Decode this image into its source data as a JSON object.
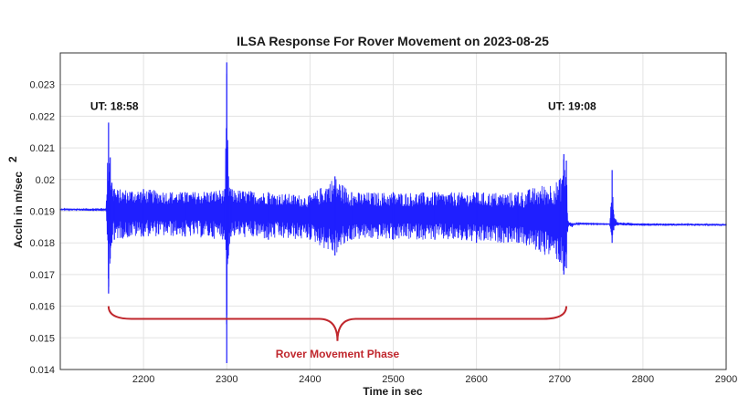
{
  "chart_data": {
    "type": "line",
    "title": "ILSA Response For Rover Movement on 2023-08-25",
    "xlabel": "Time in sec",
    "ylabel": "Accln in m/sec",
    "ylabel_sup": "2",
    "xlim": [
      2100,
      2900
    ],
    "ylim": [
      0.014,
      0.024
    ],
    "xticks": [
      "2200",
      "2300",
      "2400",
      "2500",
      "2600",
      "2700",
      "2800",
      "2900"
    ],
    "yticks": [
      "0.014",
      "0.015",
      "0.016",
      "0.017",
      "0.018",
      "0.019",
      "0.02",
      "0.021",
      "0.022",
      "0.023"
    ],
    "xtick_values": [
      2200,
      2300,
      2400,
      2500,
      2600,
      2700,
      2800,
      2900
    ],
    "ytick_values": [
      0.014,
      0.015,
      0.016,
      0.017,
      0.018,
      0.019,
      0.02,
      0.021,
      0.022,
      0.023
    ],
    "grid": true,
    "line_color": "#1f1fff",
    "series": [
      {
        "x": [
          2100,
          2155,
          2158,
          2160,
          2162,
          2165,
          2200,
          2250,
          2298,
          2300,
          2302,
          2305,
          2350,
          2400,
          2430,
          2450,
          2500,
          2550,
          2600,
          2650,
          2700,
          2705,
          2708,
          2710,
          2715,
          2720,
          2760,
          2763,
          2765,
          2770,
          2800,
          2900
        ],
        "center": [
          0.01905,
          0.01905,
          0.0191,
          0.019,
          0.01915,
          0.019,
          0.019,
          0.019,
          0.019,
          0.019,
          0.019,
          0.019,
          0.019,
          0.0189,
          0.0189,
          0.0189,
          0.0189,
          0.0189,
          0.0189,
          0.0188,
          0.0188,
          0.0188,
          0.0188,
          0.0186,
          0.01865,
          0.01862,
          0.0186,
          0.0186,
          0.01862,
          0.0186,
          0.01858,
          0.01858
        ],
        "upper": [
          0.01908,
          0.0191,
          0.0218,
          0.0207,
          0.0199,
          0.0197,
          0.0197,
          0.0196,
          0.0197,
          0.0237,
          0.0201,
          0.0197,
          0.0196,
          0.0195,
          0.0201,
          0.0196,
          0.0196,
          0.0196,
          0.0196,
          0.0196,
          0.02,
          0.0208,
          0.0206,
          0.0187,
          0.0186,
          0.01862,
          0.0186,
          0.0203,
          0.0189,
          0.01865,
          0.01862,
          0.0186
        ],
        "lower": [
          0.01903,
          0.019,
          0.0164,
          0.0175,
          0.018,
          0.0181,
          0.0182,
          0.0182,
          0.0181,
          0.0142,
          0.0176,
          0.0182,
          0.0181,
          0.0181,
          0.0176,
          0.0181,
          0.0181,
          0.0181,
          0.018,
          0.018,
          0.0174,
          0.017,
          0.0172,
          0.0185,
          0.0185,
          0.01858,
          0.01858,
          0.018,
          0.0184,
          0.01855,
          0.01854,
          0.01854
        ]
      }
    ],
    "annotations": [
      {
        "text": "UT: 18:58",
        "x": 2158,
        "y": 0.0222
      },
      {
        "text": "UT: 19:08",
        "x": 2708,
        "y": 0.0222
      }
    ],
    "bracket": {
      "label": "Rover Movement Phase",
      "x_start": 2158,
      "x_end": 2708,
      "y_top": 0.016,
      "y_mid": 0.0156,
      "y_tip": 0.0149,
      "color": "#c0272d"
    }
  }
}
